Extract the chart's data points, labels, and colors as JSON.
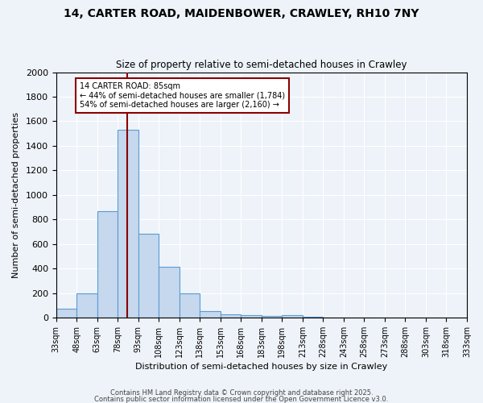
{
  "title1": "14, CARTER ROAD, MAIDENBOWER, CRAWLEY, RH10 7NY",
  "title2": "Size of property relative to semi-detached houses in Crawley",
  "xlabel": "Distribution of semi-detached houses by size in Crawley",
  "ylabel": "Number of semi-detached properties",
  "bin_edges": [
    33,
    48,
    63,
    78,
    93,
    108,
    123,
    138,
    153,
    168,
    183,
    198,
    213,
    228,
    243,
    258,
    273,
    288,
    303,
    318,
    333
  ],
  "bin_counts": [
    70,
    195,
    870,
    1530,
    685,
    415,
    195,
    55,
    25,
    20,
    15,
    20,
    5,
    2,
    2,
    1,
    1,
    1,
    1,
    1
  ],
  "bar_facecolor": "#c5d8ed",
  "bar_edgecolor": "#5b9bd5",
  "background_color": "#eef3f9",
  "grid_color": "#ffffff",
  "property_value": 85,
  "red_line_color": "#8b0000",
  "annotation_line1": "14 CARTER ROAD: 85sqm",
  "annotation_line2": "← 44% of semi-detached houses are smaller (1,784)",
  "annotation_line3": "54% of semi-detached houses are larger (2,160) →",
  "annotation_box_edgecolor": "#8b0000",
  "annotation_box_facecolor": "#ffffff",
  "ylim": [
    0,
    2000
  ],
  "yticks": [
    0,
    200,
    400,
    600,
    800,
    1000,
    1200,
    1400,
    1600,
    1800,
    2000
  ],
  "footer_text1": "Contains HM Land Registry data © Crown copyright and database right 2025.",
  "footer_text2": "Contains public sector information licensed under the Open Government Licence v3.0."
}
